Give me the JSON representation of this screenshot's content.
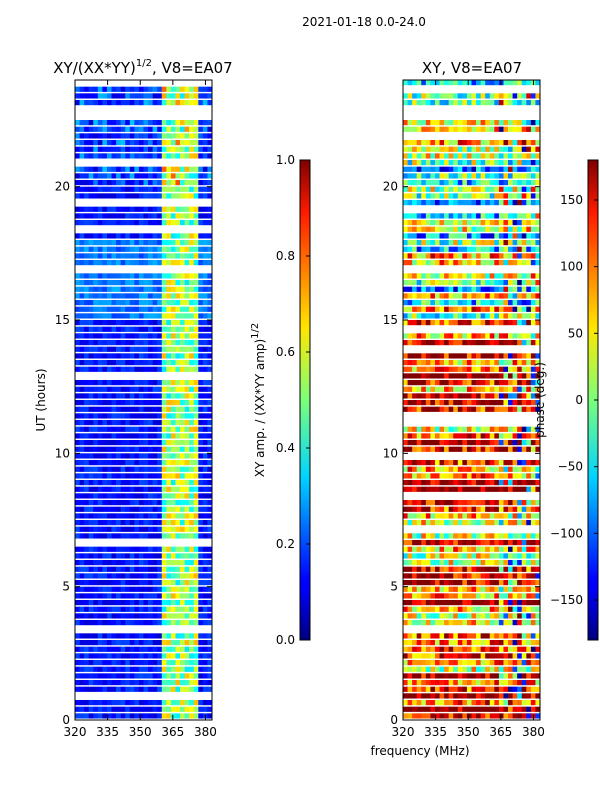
{
  "figure": {
    "suptitle": "2021-01-18 0.0-24.0",
    "xlabel": "frequency (MHz)"
  },
  "chart_data": [
    {
      "type": "heatmap",
      "title_main": "XY/(XX*YY)",
      "title_sup": "1/2",
      "title_tail": ", V8=EA07",
      "ylabel": "UT (hours)",
      "xlim": [
        320,
        383
      ],
      "ylim": [
        0,
        24
      ],
      "xticks": [
        320,
        335,
        350,
        365,
        380
      ],
      "yticks": [
        0,
        5,
        10,
        15,
        20
      ],
      "colorbar": {
        "label_main": "XY amp. / (XX*YY amp)",
        "label_sup": "1/2",
        "range": [
          0.0,
          1.0
        ],
        "ticks": [
          "0.0",
          "0.2",
          "0.4",
          "0.6",
          "0.8",
          "1.0"
        ]
      }
    },
    {
      "type": "heatmap",
      "title_main": "XY, V8=EA07",
      "xlim": [
        320,
        383
      ],
      "ylim": [
        0,
        24
      ],
      "xticks": [
        320,
        335,
        350,
        365,
        380
      ],
      "yticks": [
        0,
        5,
        10,
        15,
        20
      ],
      "colorbar": {
        "label_main": "phase (deg.)",
        "range": [
          -180,
          180
        ],
        "ticks": [
          "−150",
          "−100",
          "−50",
          "0",
          "50",
          "100",
          "150"
        ]
      }
    }
  ]
}
